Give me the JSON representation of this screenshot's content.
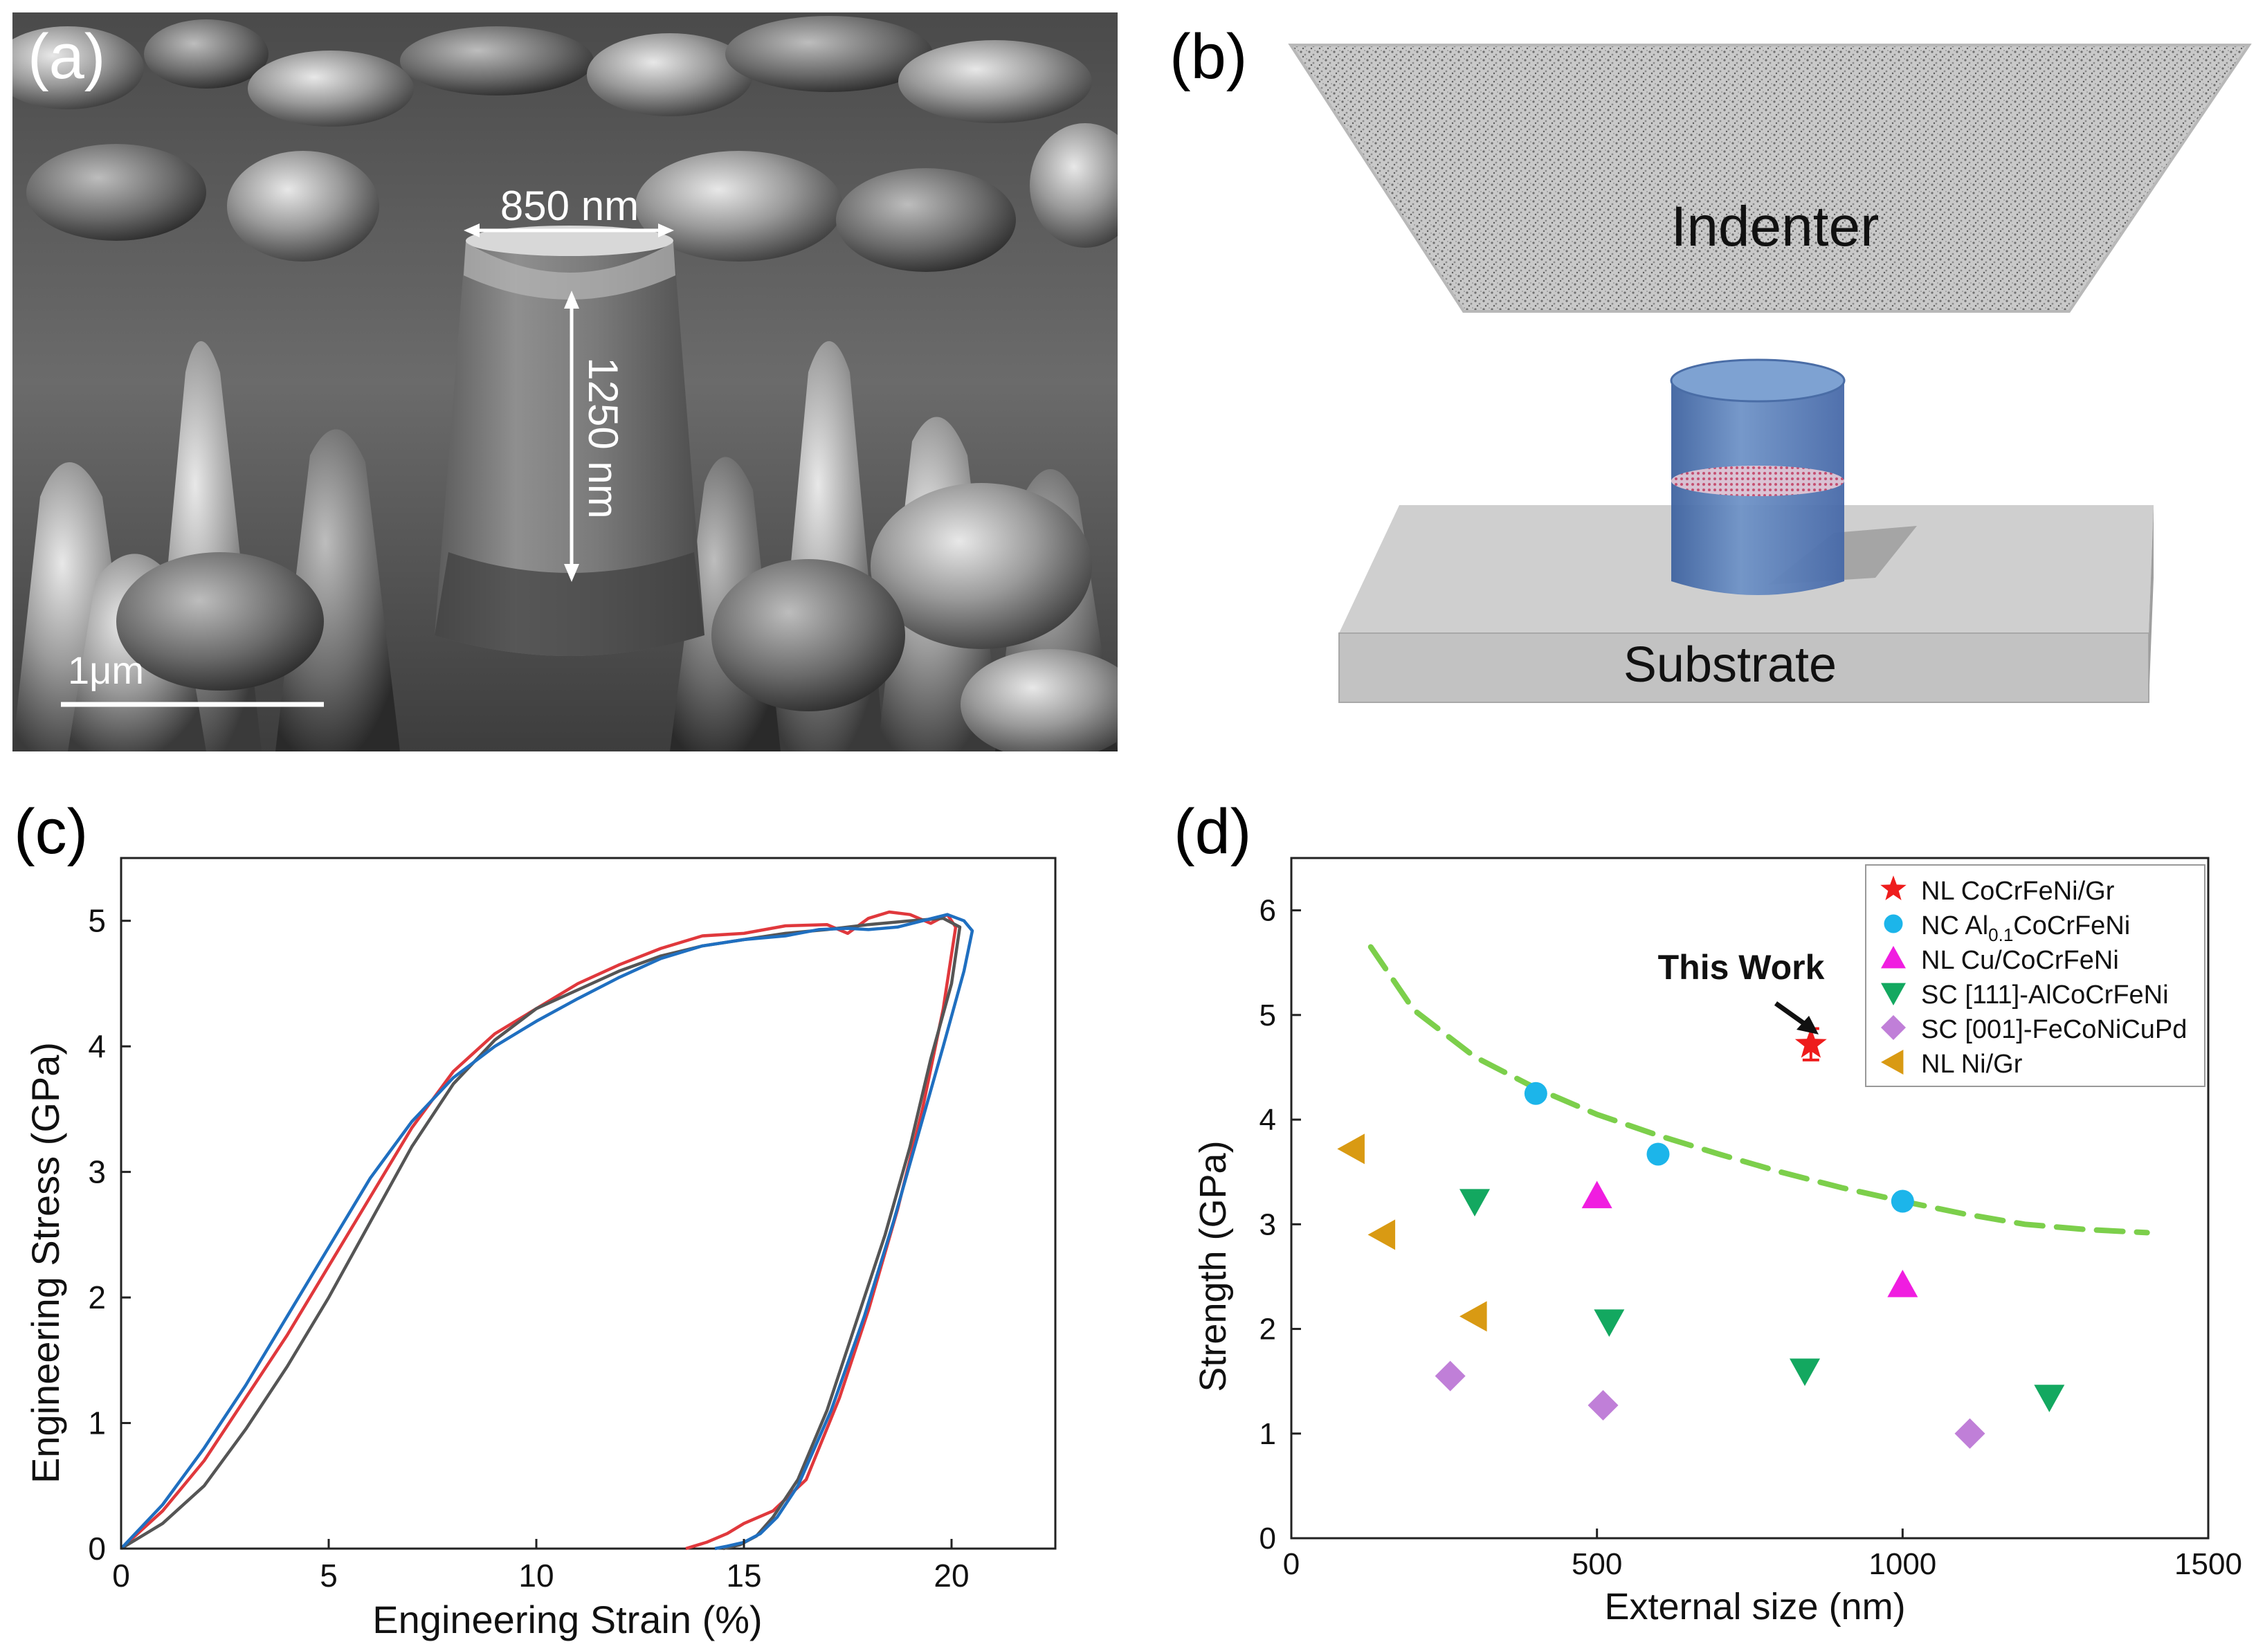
{
  "panel_a": {
    "label": "(a)",
    "width_label": "850 nm",
    "height_label": "1250 nm",
    "scale_label": "1μm"
  },
  "panel_b": {
    "label": "(b)",
    "indenter_label": "Indenter",
    "substrate_label": "Substrate"
  },
  "chart_data": [
    {
      "panel": "(c)",
      "type": "line",
      "xlabel": "Engineering Strain (%)",
      "ylabel": "Engineering Stress (GPa)",
      "xlim": [
        0,
        22.5
      ],
      "ylim": [
        0,
        5.5
      ],
      "xticks": [
        0,
        5,
        10,
        15,
        20
      ],
      "yticks": [
        0,
        1,
        2,
        3,
        4,
        5
      ],
      "grid": false,
      "legend": "none",
      "series": [
        {
          "color": "#e0383c",
          "x": [
            0,
            1,
            2,
            3,
            4,
            5,
            6,
            7,
            8,
            9,
            10,
            11,
            12,
            13,
            14,
            15,
            16,
            17,
            17.5,
            18,
            18.5,
            19,
            19.5,
            19.9,
            20.1,
            19.8,
            19.3,
            18.7,
            18,
            17.3,
            16.5,
            15.7,
            15,
            14.6,
            14.1,
            13.6
          ],
          "y": [
            0,
            0.3,
            0.7,
            1.2,
            1.7,
            2.25,
            2.8,
            3.35,
            3.8,
            4.1,
            4.3,
            4.5,
            4.65,
            4.78,
            4.88,
            4.9,
            4.96,
            4.97,
            4.9,
            5.02,
            5.07,
            5.05,
            4.98,
            5.05,
            4.95,
            4.3,
            3.5,
            2.7,
            1.9,
            1.2,
            0.55,
            0.3,
            0.2,
            0.12,
            0.05,
            0
          ]
        },
        {
          "color": "#555555",
          "x": [
            0,
            1,
            2,
            3,
            4,
            5,
            6,
            7,
            8,
            9,
            10,
            11,
            12,
            13,
            14,
            15,
            16,
            17,
            18,
            19,
            19.8,
            20.2,
            20.0,
            19.5,
            19.0,
            18.4,
            17.7,
            17.0,
            16.3,
            15.7,
            15.3,
            14.9,
            14.5
          ],
          "y": [
            0,
            0.2,
            0.5,
            0.95,
            1.45,
            2.0,
            2.6,
            3.2,
            3.7,
            4.05,
            4.3,
            4.45,
            4.6,
            4.72,
            4.8,
            4.85,
            4.9,
            4.93,
            4.97,
            5.0,
            5.02,
            4.95,
            4.5,
            3.9,
            3.2,
            2.5,
            1.8,
            1.1,
            0.55,
            0.25,
            0.1,
            0.03,
            0
          ]
        },
        {
          "color": "#1f6fc0",
          "x": [
            0,
            1,
            2,
            3,
            4,
            5,
            6,
            7,
            8,
            9,
            10,
            11,
            12,
            13,
            14,
            15,
            16,
            16.8,
            17.5,
            18,
            18.7,
            19.3,
            19.9,
            20.3,
            20.5,
            20.3,
            19.8,
            19.2,
            18.6,
            17.9,
            17.1,
            16.3,
            15.8,
            15.4,
            15.0,
            14.6,
            14.3
          ],
          "y": [
            0,
            0.35,
            0.8,
            1.3,
            1.85,
            2.4,
            2.95,
            3.4,
            3.75,
            4.0,
            4.2,
            4.38,
            4.55,
            4.7,
            4.8,
            4.85,
            4.88,
            4.93,
            4.94,
            4.93,
            4.95,
            5.0,
            5.05,
            5.0,
            4.92,
            4.6,
            4.0,
            3.3,
            2.6,
            1.85,
            1.1,
            0.5,
            0.25,
            0.12,
            0.05,
            0.02,
            0
          ]
        }
      ]
    },
    {
      "panel": "(d)",
      "type": "scatter",
      "xlabel": "External size (nm)",
      "ylabel": "Strength (GPa)",
      "xlim": [
        0,
        1500
      ],
      "ylim": [
        0,
        6.5
      ],
      "xticks": [
        0,
        500,
        1000,
        1500
      ],
      "yticks": [
        0,
        1,
        2,
        3,
        4,
        5,
        6
      ],
      "grid": false,
      "legend": "top-right",
      "annotation": "This Work",
      "trend_line": {
        "color": "#7ccf4b",
        "x": [
          130,
          200,
          300,
          400,
          500,
          600,
          700,
          800,
          900,
          1000,
          1100,
          1200,
          1300,
          1400
        ],
        "y": [
          5.65,
          5.05,
          4.6,
          4.3,
          4.05,
          3.85,
          3.67,
          3.5,
          3.35,
          3.22,
          3.1,
          3.0,
          2.95,
          2.92
        ]
      },
      "series": [
        {
          "name": "NL CoCrFeNi/Gr",
          "marker": "star",
          "color": "#ee1c1c",
          "points": [
            [
              850,
              4.72
            ]
          ],
          "error": 0.15
        },
        {
          "name": "NC Al",
          "name_sub": "0.1",
          "name_rest": "CoCrFeNi",
          "marker": "circle",
          "color": "#1cb5ea",
          "points": [
            [
              400,
              4.25
            ],
            [
              600,
              3.67
            ],
            [
              1000,
              3.22
            ]
          ]
        },
        {
          "name": "NL Cu/CoCrFeNi",
          "marker": "triangle-up",
          "color": "#f01de0",
          "points": [
            [
              500,
              3.27
            ],
            [
              1000,
              2.42
            ]
          ]
        },
        {
          "name": "SC [111]-AlCoCrFeNi",
          "marker": "triangle-down",
          "color": "#13a860",
          "points": [
            [
              300,
              3.22
            ],
            [
              520,
              2.07
            ],
            [
              840,
              1.6
            ],
            [
              1240,
              1.35
            ]
          ]
        },
        {
          "name": "SC [001]-FeCoNiCuPd",
          "marker": "diamond",
          "color": "#c07fd8",
          "points": [
            [
              260,
              1.55
            ],
            [
              510,
              1.27
            ],
            [
              1110,
              1.0
            ]
          ]
        },
        {
          "name": "NL Ni/Gr",
          "marker": "triangle-left",
          "color": "#d99a13",
          "points": [
            [
              100,
              3.72
            ],
            [
              150,
              2.9
            ],
            [
              300,
              2.12
            ]
          ]
        }
      ]
    }
  ],
  "colors": {
    "red_curve": "#e0383c",
    "gray_curve": "#555555",
    "blue_curve": "#1f6fc0",
    "trend": "#7ccf4b",
    "pillar": "#5e86b5",
    "substrate": "#c8c8c8"
  }
}
